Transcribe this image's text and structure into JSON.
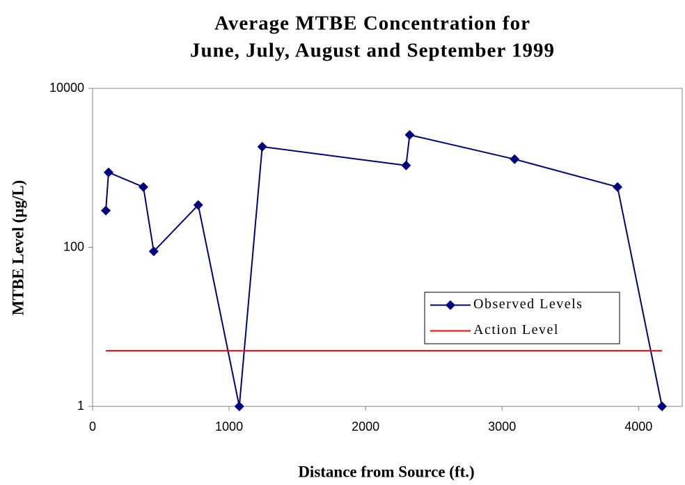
{
  "chart_data": {
    "type": "line",
    "title": [
      "Average MTBE Concentration for",
      "June, July, August and September 1999"
    ],
    "xlabel": "Distance from Source (ft.)",
    "ylabel": "MTBE Level (µg/L)",
    "series": [
      {
        "name": "Observed Levels",
        "color": "#000080",
        "marker": "diamond",
        "x": [
          97,
          117,
          372,
          448,
          774,
          1075,
          1243,
          2297,
          2323,
          3092,
          3846,
          4172
        ],
        "values": [
          290,
          877,
          575,
          89,
          341,
          1,
          1846,
          1072,
          2600,
          1285,
          575,
          1
        ]
      },
      {
        "name": "Action Level",
        "color": "#ff0000",
        "marker": "none",
        "x": [
          97,
          4172
        ],
        "values": [
          5,
          5
        ]
      }
    ],
    "xlim": [
      0,
      4320
    ],
    "xticks": [
      0,
      1000,
      2000,
      3000,
      4000
    ],
    "ylim": [
      1,
      10000
    ],
    "yticks": [
      1,
      100,
      10000
    ],
    "yscale": "log",
    "grid": false,
    "legend": "center-right"
  }
}
